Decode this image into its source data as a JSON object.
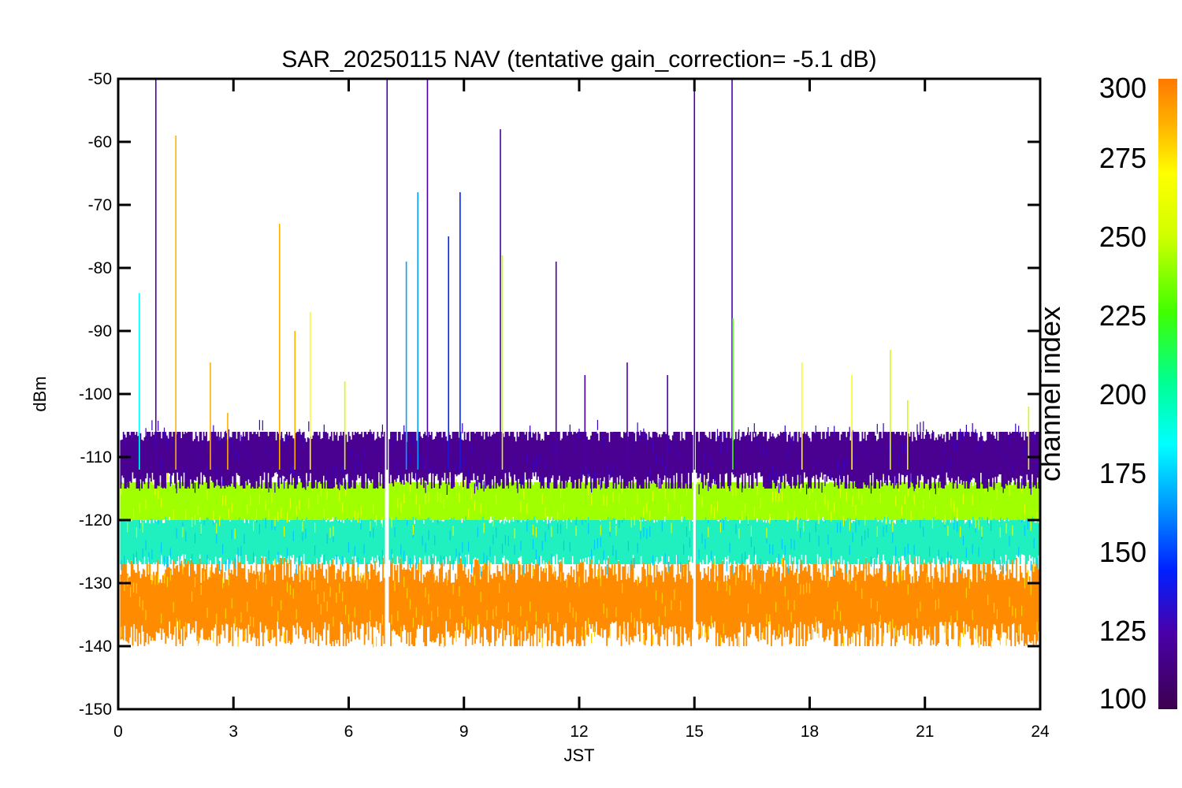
{
  "chart_data": {
    "type": "line",
    "title": "SAR_20250115 NAV (tentative gain_correction= -5.1 dB)",
    "xlabel": "JST",
    "ylabel": "dBm",
    "xlim": [
      0,
      24
    ],
    "ylim": [
      -150,
      -50
    ],
    "xticks": [
      0,
      3,
      6,
      9,
      12,
      15,
      18,
      21,
      24
    ],
    "yticks": [
      -50,
      -60,
      -70,
      -80,
      -90,
      -100,
      -110,
      -120,
      -130,
      -140,
      -150
    ],
    "colorbar": {
      "label": "channel index",
      "range": [
        100,
        300
      ],
      "ticks": [
        300,
        275,
        250,
        225,
        200,
        175,
        150,
        125,
        100
      ],
      "colormap": "rainbow",
      "colors": [
        "#3c0050",
        "#4a00a8",
        "#0020ff",
        "#00a0ff",
        "#00ffff",
        "#00ff90",
        "#40ff00",
        "#d0ff00",
        "#ffff00",
        "#ffb000",
        "#ff7800"
      ]
    },
    "data_gaps_jst": [
      7.0,
      15.0
    ],
    "series": [
      {
        "channel_range": [
          100,
          125
        ],
        "color": "#4a0090",
        "baseline_dbm": -110,
        "spread_db": 4,
        "noise_range_dbm": [
          -115,
          -106
        ]
      },
      {
        "channel_range": [
          225,
          265
        ],
        "color": "#a0ff00",
        "baseline_dbm": -117,
        "spread_db": 4,
        "noise_range_dbm": [
          -120,
          -114
        ]
      },
      {
        "channel_range": [
          175,
          225
        ],
        "color": "#20f0c0",
        "baseline_dbm": -123,
        "spread_db": 4,
        "noise_range_dbm": [
          -127,
          -118
        ]
      },
      {
        "channel_range": [
          270,
          300
        ],
        "color": "#ff8c00",
        "baseline_dbm": -133,
        "spread_db": 5,
        "noise_range_dbm": [
          -140,
          -126
        ]
      }
    ],
    "spikes": [
      {
        "x": 0.55,
        "y": -84,
        "channel": 180
      },
      {
        "x": 0.98,
        "y": -50,
        "channel": 110
      },
      {
        "x": 1.5,
        "y": -59,
        "channel": 285
      },
      {
        "x": 2.4,
        "y": -95,
        "channel": 275
      },
      {
        "x": 2.85,
        "y": -103,
        "channel": 285
      },
      {
        "x": 4.2,
        "y": -73,
        "channel": 280
      },
      {
        "x": 4.6,
        "y": -90,
        "channel": 272
      },
      {
        "x": 5.0,
        "y": -87,
        "channel": 250
      },
      {
        "x": 5.9,
        "y": -98,
        "channel": 230
      },
      {
        "x": 7.0,
        "y": -50,
        "channel": 110
      },
      {
        "x": 7.5,
        "y": -79,
        "channel": 150
      },
      {
        "x": 7.8,
        "y": -68,
        "channel": 160
      },
      {
        "x": 8.05,
        "y": -50,
        "channel": 115
      },
      {
        "x": 8.6,
        "y": -75,
        "channel": 140
      },
      {
        "x": 8.9,
        "y": -68,
        "channel": 130
      },
      {
        "x": 9.95,
        "y": -58,
        "channel": 115
      },
      {
        "x": 10.0,
        "y": -78,
        "channel": 240
      },
      {
        "x": 11.4,
        "y": -79,
        "channel": 115
      },
      {
        "x": 12.15,
        "y": -97,
        "channel": 110
      },
      {
        "x": 13.25,
        "y": -95,
        "channel": 110
      },
      {
        "x": 14.3,
        "y": -97,
        "channel": 110
      },
      {
        "x": 15.0,
        "y": -50,
        "channel": 110
      },
      {
        "x": 15.98,
        "y": -50,
        "channel": 115
      },
      {
        "x": 16.0,
        "y": -88,
        "channel": 210
      },
      {
        "x": 17.8,
        "y": -95,
        "channel": 265
      },
      {
        "x": 19.1,
        "y": -97,
        "channel": 255
      },
      {
        "x": 20.1,
        "y": -93,
        "channel": 240
      },
      {
        "x": 20.55,
        "y": -101,
        "channel": 245
      },
      {
        "x": 23.7,
        "y": -102,
        "channel": 230
      }
    ]
  }
}
